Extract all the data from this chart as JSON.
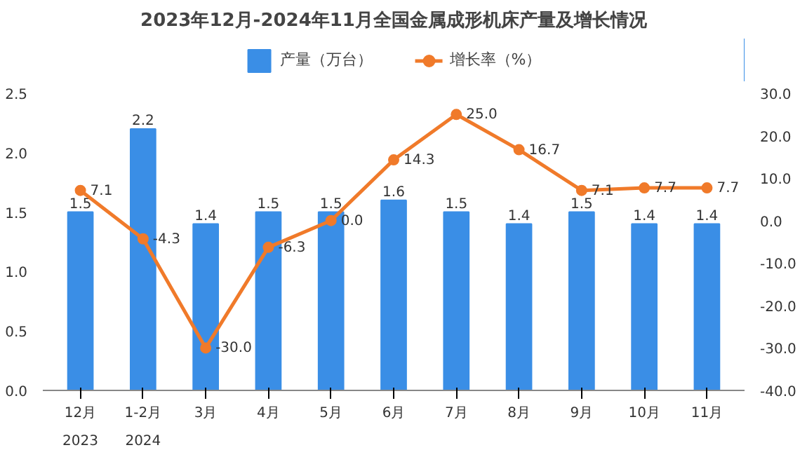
{
  "chart_data": {
    "type": "bar",
    "title": "2023年12月-2024年11月全国金属成形机床产量及增长情况",
    "categories": [
      "12月\n2023",
      "1-2月\n2024",
      "3月",
      "4月",
      "5月",
      "6月",
      "7月",
      "8月",
      "9月",
      "10月",
      "11月"
    ],
    "series": [
      {
        "name": "产量（万台）",
        "color": "#3a8ee6",
        "values": [
          1.5,
          2.2,
          1.4,
          1.5,
          1.5,
          1.6,
          1.5,
          1.4,
          1.5,
          1.4,
          1.4
        ],
        "value_labels": [
          "1.5",
          "2.2",
          "1.4",
          "1.5",
          "1.5",
          "1.6",
          "1.5",
          "1.4",
          "1.5",
          "1.4",
          "1.4"
        ]
      },
      {
        "name": "增长率（%）",
        "type": "line",
        "axis": "y2",
        "color": "#f07a2a",
        "values": [
          7.1,
          -4.3,
          -30.0,
          -6.3,
          0.0,
          14.3,
          25.0,
          16.7,
          7.1,
          7.7,
          7.7
        ],
        "value_labels": [
          "7.1",
          "-4.3",
          "-30.0",
          "-6.3",
          "0.0",
          "14.3",
          "25.0",
          "16.7",
          "7.1",
          "7.7",
          "7.7"
        ]
      }
    ],
    "ylim": [
      0,
      2.5
    ],
    "yticks": [
      {
        "value": 0,
        "label": "0.0"
      },
      {
        "value": 0.5,
        "label": "0.5"
      },
      {
        "value": 1,
        "label": "1.0"
      },
      {
        "value": 1.5,
        "label": "1.5"
      },
      {
        "value": 2,
        "label": "2.0"
      },
      {
        "value": 2.5,
        "label": "2.5"
      }
    ],
    "y2lim": [
      -40,
      30
    ],
    "y2ticks": [
      {
        "value": -40,
        "label": "-40.0"
      },
      {
        "value": -30,
        "label": "-30.0"
      },
      {
        "value": -20,
        "label": "-20.0"
      },
      {
        "value": -10,
        "label": "-10.0"
      },
      {
        "value": 0,
        "label": "0.0"
      },
      {
        "value": 10,
        "label": "10.0"
      },
      {
        "value": 20,
        "label": "20.0"
      },
      {
        "value": 30,
        "label": "30.0"
      }
    ],
    "marker": "circle",
    "line_style": "solid",
    "legend": "top",
    "grid": false
  }
}
